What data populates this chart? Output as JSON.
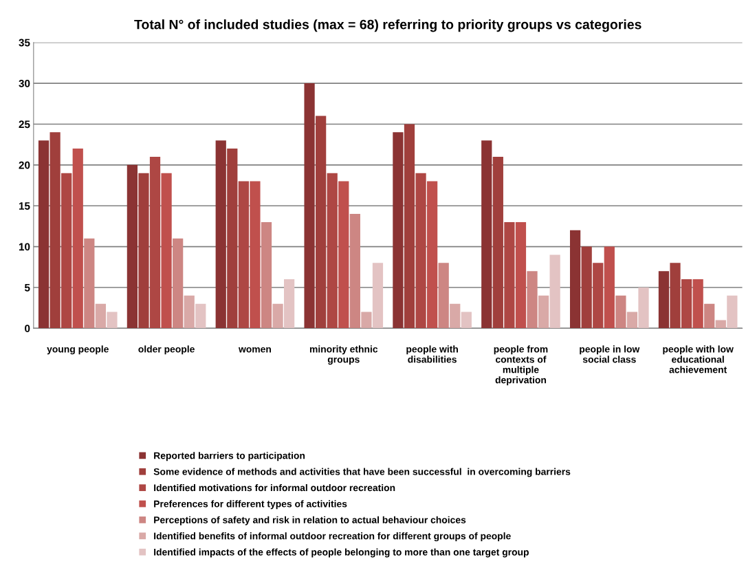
{
  "chart_data": {
    "type": "bar",
    "title": "Total N° of included studies (max = 68) referring to priority groups vs categories",
    "categories": [
      "young people",
      "older people",
      "women",
      "minority ethnic\ngroups",
      "people with\ndisabilities",
      "people from\ncontexts of\nmultiple\ndeprivation",
      "people in low\nsocial class",
      "people with low\neducational\nachievement"
    ],
    "series": [
      {
        "name": "Reported barriers to participation",
        "color": "#8b3333",
        "values": [
          23,
          20,
          23,
          30,
          24,
          23,
          12,
          7
        ]
      },
      {
        "name": "Some evidence of methods and activities that have been successful  in overcoming barriers",
        "color": "#a03f3c",
        "values": [
          24,
          19,
          22,
          26,
          25,
          21,
          10,
          8
        ]
      },
      {
        "name": "Identified motivations for informal outdoor recreation",
        "color": "#ae4744",
        "values": [
          19,
          21,
          18,
          19,
          19,
          13,
          8,
          6
        ]
      },
      {
        "name": "Preferences for different types of activities",
        "color": "#c0504d",
        "values": [
          22,
          19,
          18,
          18,
          18,
          13,
          10,
          6
        ]
      },
      {
        "name": "Perceptions of safety and risk in relation to actual behaviour choices",
        "color": "#cd8683",
        "values": [
          11,
          11,
          13,
          14,
          8,
          7,
          4,
          3
        ]
      },
      {
        "name": "Identified benefits of informal outdoor recreation for different groups of people",
        "color": "#d9a9a7",
        "values": [
          3,
          4,
          3,
          2,
          3,
          4,
          2,
          1
        ]
      },
      {
        "name": "Identified impacts of the effects of people belonging to more than one target group",
        "color": "#e3c3c3",
        "values": [
          2,
          3,
          6,
          8,
          2,
          9,
          5,
          4
        ]
      }
    ],
    "ylim": [
      0,
      35
    ],
    "yticks": [
      0,
      5,
      10,
      15,
      20,
      25,
      30,
      35
    ],
    "grid": "y",
    "legend": "bottom"
  }
}
